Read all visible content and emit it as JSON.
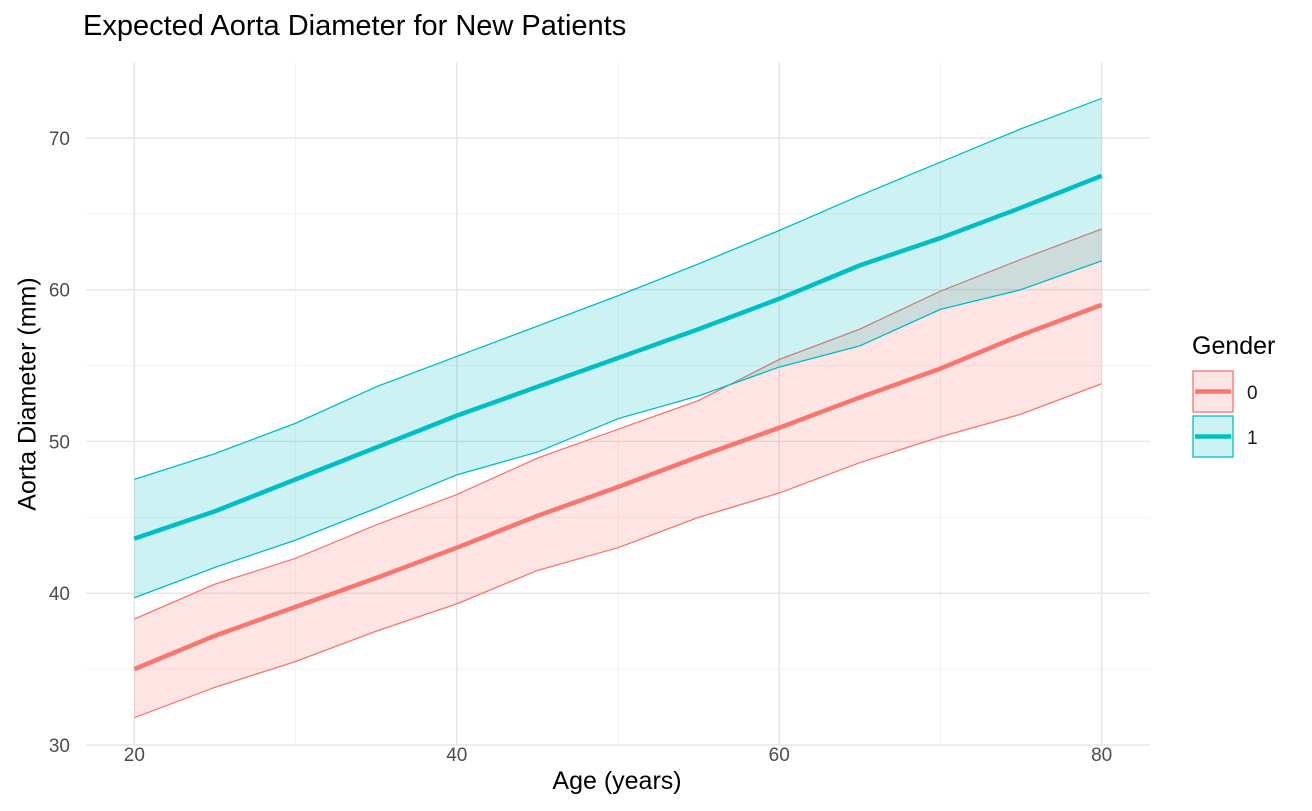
{
  "chart_data": {
    "type": "line",
    "title": "Expected Aorta Diameter for New Patients",
    "xlabel": "Age (years)",
    "ylabel": "Aorta Diameter (mm)",
    "xlim": [
      17,
      83
    ],
    "ylim": [
      30,
      75
    ],
    "x_ticks": [
      20,
      40,
      60,
      80
    ],
    "y_ticks": [
      30,
      40,
      50,
      60,
      70
    ],
    "grid": true,
    "legend": {
      "title": "Gender",
      "placement": "right"
    },
    "x": [
      20,
      25,
      30,
      35,
      40,
      45,
      50,
      55,
      60,
      65,
      70,
      75,
      80
    ],
    "series": [
      {
        "name": "0",
        "color": "#F8766D",
        "fit": [
          35.0,
          37.2,
          39.1,
          41.0,
          43.0,
          45.1,
          47.0,
          49.0,
          50.9,
          52.9,
          54.8,
          57.0,
          59.0
        ],
        "lower": [
          31.8,
          33.8,
          35.5,
          37.5,
          39.3,
          41.5,
          43.0,
          45.0,
          46.6,
          48.6,
          50.3,
          51.8,
          53.8
        ],
        "upper": [
          38.3,
          40.6,
          42.3,
          44.5,
          46.5,
          48.9,
          50.8,
          52.7,
          55.4,
          57.4,
          59.9,
          62.0,
          64.0
        ]
      },
      {
        "name": "1",
        "color": "#00BFC4",
        "fit": [
          43.6,
          45.4,
          47.5,
          49.6,
          51.7,
          53.6,
          55.5,
          57.4,
          59.4,
          61.6,
          63.4,
          65.4,
          67.5
        ],
        "lower": [
          39.7,
          41.7,
          43.5,
          45.6,
          47.8,
          49.3,
          51.5,
          53.0,
          54.9,
          56.3,
          58.7,
          60.0,
          61.9
        ],
        "upper": [
          47.5,
          49.2,
          51.2,
          53.6,
          55.6,
          57.6,
          59.6,
          61.7,
          63.9,
          66.2,
          68.4,
          70.6,
          72.6
        ]
      }
    ]
  }
}
